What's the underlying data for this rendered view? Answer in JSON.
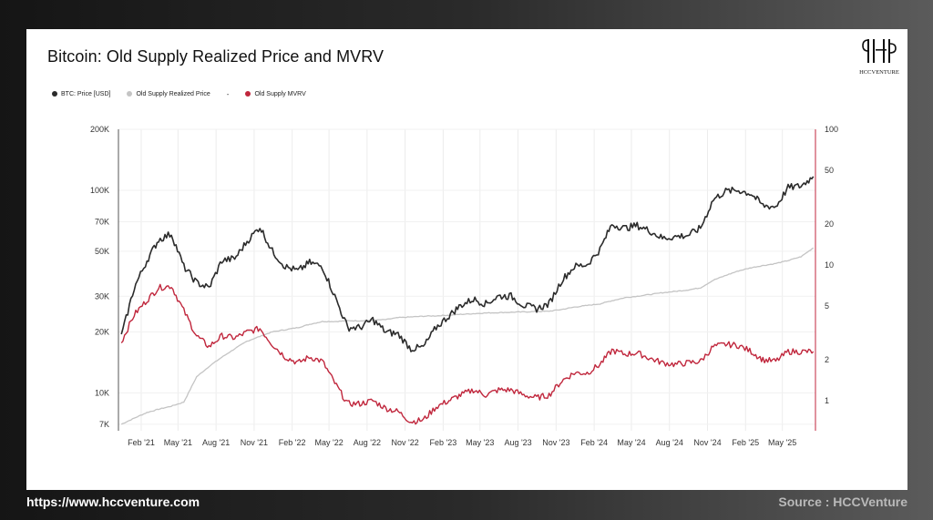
{
  "page": {
    "footer_url": "https://www.hccventure.com",
    "footer_source": "Source : HCCVenture",
    "logo_text": "HCCVENTURE"
  },
  "colors": {
    "price": "#2b2b2b",
    "realized": "#c4c4c4",
    "mvrv": "#c0263c"
  },
  "chart_data": {
    "type": "line",
    "title": "Bitcoin: Old Supply Realized Price and MVRV",
    "legend": [
      {
        "name": "BTC: Price [USD]",
        "color": "#2b2b2b"
      },
      {
        "name": "Old Supply Realized Price",
        "color": "#c4c4c4"
      },
      {
        "name": "-",
        "color": null
      },
      {
        "name": "Old Supply MVRV",
        "color": "#c0263c"
      }
    ],
    "x_ticks": [
      "Feb '21",
      "May '21",
      "Aug '21",
      "Nov '21",
      "Feb '22",
      "May '22",
      "Aug '22",
      "Nov '22",
      "Feb '23",
      "May '23",
      "Aug '23",
      "Nov '23",
      "Feb '24",
      "May '24",
      "Aug '24",
      "Nov '24",
      "Feb '25",
      "May '25"
    ],
    "left_axis": {
      "scale": "log",
      "range": [
        6500,
        200000
      ],
      "ticks": [
        "200K",
        "100K",
        "70K",
        "50K",
        "30K",
        "20K",
        "10K",
        "7K"
      ],
      "tick_values": [
        200000,
        100000,
        70000,
        50000,
        30000,
        20000,
        10000,
        7000
      ]
    },
    "right_axis": {
      "scale": "log",
      "range": [
        0.6,
        100
      ],
      "ticks": [
        "100",
        "50",
        "20",
        "10",
        "5",
        "2",
        "1"
      ],
      "tick_values": [
        100,
        50,
        20,
        10,
        5,
        2,
        1
      ]
    },
    "x_dates": [
      "2020-12-15",
      "2021-01-15",
      "2021-02-15",
      "2021-03-15",
      "2021-04-15",
      "2021-05-15",
      "2021-06-15",
      "2021-07-15",
      "2021-08-15",
      "2021-09-15",
      "2021-10-15",
      "2021-11-15",
      "2021-12-15",
      "2022-01-15",
      "2022-02-15",
      "2022-03-15",
      "2022-04-15",
      "2022-05-15",
      "2022-06-15",
      "2022-07-15",
      "2022-08-15",
      "2022-09-15",
      "2022-10-15",
      "2022-11-15",
      "2022-12-15",
      "2023-01-15",
      "2023-02-15",
      "2023-03-15",
      "2023-04-15",
      "2023-05-15",
      "2023-06-15",
      "2023-07-15",
      "2023-08-15",
      "2023-09-15",
      "2023-10-15",
      "2023-11-15",
      "2023-12-15",
      "2024-01-15",
      "2024-02-15",
      "2024-03-15",
      "2024-04-15",
      "2024-05-15",
      "2024-06-15",
      "2024-07-15",
      "2024-08-15",
      "2024-09-15",
      "2024-10-15",
      "2024-11-15",
      "2024-12-15",
      "2025-01-15",
      "2025-02-15",
      "2025-03-15",
      "2025-04-15",
      "2025-05-15",
      "2025-06-15",
      "2025-07-15"
    ],
    "series": [
      {
        "name": "BTC: Price [USD]",
        "axis": "left",
        "values": [
          19000,
          33000,
          45000,
          57000,
          61000,
          42000,
          35000,
          33000,
          45000,
          46000,
          56000,
          66000,
          50000,
          42000,
          40000,
          44000,
          42000,
          30000,
          21000,
          21000,
          23000,
          20000,
          19500,
          16500,
          16800,
          21000,
          24000,
          27000,
          29000,
          27500,
          30000,
          30000,
          27000,
          26000,
          27500,
          36000,
          42000,
          43000,
          51000,
          68000,
          65000,
          67000,
          63000,
          58000,
          59000,
          60000,
          65000,
          90000,
          99000,
          100000,
          96000,
          84000,
          83000,
          103000,
          105000,
          117000
        ]
      },
      {
        "name": "Old Supply Realized Price",
        "axis": "left",
        "values": [
          7000,
          7500,
          8000,
          8300,
          8600,
          9000,
          12000,
          13500,
          15000,
          16500,
          18000,
          19000,
          20000,
          20500,
          21000,
          21800,
          22500,
          22500,
          22700,
          22700,
          22800,
          23000,
          23500,
          23700,
          23900,
          24000,
          24200,
          24400,
          24600,
          24800,
          24900,
          25000,
          25100,
          25200,
          25300,
          25800,
          26500,
          27000,
          27500,
          28500,
          29500,
          30000,
          30600,
          31200,
          31700,
          32200,
          33000,
          36000,
          38000,
          40000,
          41500,
          42500,
          43500,
          45000,
          47000,
          52000
        ]
      },
      {
        "name": "Old Supply MVRV",
        "axis": "right",
        "values": [
          2.7,
          4.3,
          5.5,
          6.8,
          7.0,
          4.6,
          3.0,
          2.5,
          3.0,
          2.9,
          3.2,
          3.4,
          2.6,
          2.1,
          1.9,
          2.1,
          1.95,
          1.35,
          0.95,
          0.95,
          1.0,
          0.88,
          0.83,
          0.7,
          0.72,
          0.9,
          1.0,
          1.1,
          1.2,
          1.1,
          1.2,
          1.2,
          1.1,
          1.05,
          1.1,
          1.4,
          1.6,
          1.6,
          1.85,
          2.35,
          2.2,
          2.25,
          2.05,
          1.9,
          1.85,
          1.9,
          1.95,
          2.5,
          2.6,
          2.55,
          2.3,
          2.0,
          1.95,
          2.3,
          2.3,
          2.3
        ]
      }
    ]
  }
}
